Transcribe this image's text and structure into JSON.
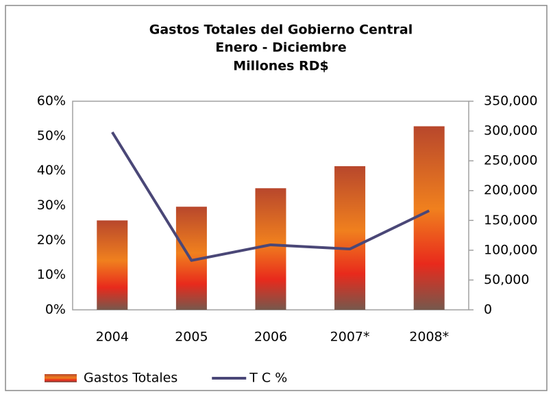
{
  "chart_data": {
    "type": "bar_line",
    "title": [
      "Gastos Totales del Gobierno Central",
      "Enero - Diciembre",
      "Millones RD$"
    ],
    "categories": [
      "2004",
      "2005",
      "2006",
      "2007*",
      "2008*"
    ],
    "series": [
      {
        "name": "Gastos Totales",
        "type": "bar",
        "axis": "y2",
        "color": "#f0801e",
        "values": [
          150000,
          173000,
          204000,
          241000,
          308000
        ]
      },
      {
        "name": "T C %",
        "type": "line",
        "axis": "y",
        "color": "#4a4777",
        "values": [
          51.1,
          14.2,
          18.7,
          17.5,
          28.5
        ]
      }
    ],
    "ylim": [
      0,
      60
    ],
    "yticks": [
      {
        "value": 0,
        "label": "0%"
      },
      {
        "value": 10,
        "label": "10%"
      },
      {
        "value": 20,
        "label": "20%"
      },
      {
        "value": 30,
        "label": "30%"
      },
      {
        "value": 40,
        "label": "40%"
      },
      {
        "value": 50,
        "label": "50%"
      },
      {
        "value": 60,
        "label": "60%"
      }
    ],
    "y2lim": [
      0,
      350000
    ],
    "y2ticks": [
      0,
      {
        "value": 50000,
        "label": "50,000"
      },
      {
        "value": 100000,
        "label": "100,000"
      },
      {
        "value": 150000,
        "label": "150,000"
      },
      {
        "value": 200000,
        "label": "200,000"
      },
      {
        "value": 250000,
        "label": "250,000"
      },
      {
        "value": 300000,
        "label": "300,000"
      },
      {
        "value": 350000,
        "label": "350,000"
      }
    ],
    "grid": false,
    "legend": "bottom-left"
  }
}
